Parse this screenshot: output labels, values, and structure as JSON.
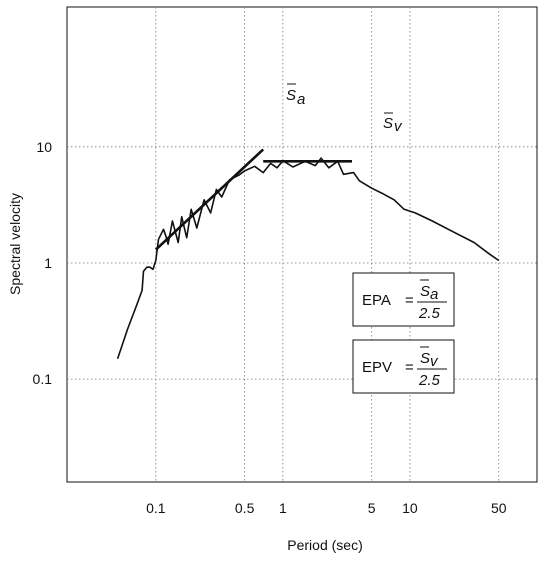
{
  "chart_data": {
    "type": "line",
    "title": "",
    "xlabel": "Period (sec)",
    "ylabel": "Spectral velocity",
    "xscale": "log",
    "yscale": "log",
    "xlim": [
      0.02,
      100
    ],
    "ylim": [
      0.013,
      160
    ],
    "grid": "dotted, at 0.1, 0.5, 1, 5, 10, 50 (x) and 0.1, 1, 10 (y)",
    "x_ticks": [
      {
        "value": 0.1,
        "label": "0.1"
      },
      {
        "value": 0.5,
        "label": "0.5"
      },
      {
        "value": 1,
        "label": "1"
      },
      {
        "value": 5,
        "label": "5"
      },
      {
        "value": 10,
        "label": "10"
      },
      {
        "value": 50,
        "label": "50"
      }
    ],
    "y_ticks": [
      {
        "value": 0.1,
        "label": "0.1"
      },
      {
        "value": 1,
        "label": "1"
      },
      {
        "value": 10,
        "label": "10"
      }
    ],
    "series": [
      {
        "role": "response spectrum",
        "points": [
          [
            0.05,
            0.15
          ],
          [
            0.06,
            0.27
          ],
          [
            0.07,
            0.42
          ],
          [
            0.078,
            0.58
          ],
          [
            0.08,
            0.85
          ],
          [
            0.085,
            0.92
          ],
          [
            0.09,
            0.92
          ],
          [
            0.095,
            0.88
          ],
          [
            0.1,
            1.05
          ],
          [
            0.105,
            1.6
          ],
          [
            0.115,
            1.95
          ],
          [
            0.12,
            1.7
          ],
          [
            0.125,
            1.45
          ],
          [
            0.135,
            2.3
          ],
          [
            0.15,
            1.5
          ],
          [
            0.16,
            2.5
          ],
          [
            0.175,
            1.65
          ],
          [
            0.19,
            2.9
          ],
          [
            0.21,
            2.0
          ],
          [
            0.24,
            3.5
          ],
          [
            0.27,
            2.7
          ],
          [
            0.3,
            4.3
          ],
          [
            0.33,
            3.7
          ],
          [
            0.38,
            5.2
          ],
          [
            0.45,
            5.7
          ],
          [
            0.5,
            6.2
          ],
          [
            0.6,
            6.8
          ],
          [
            0.7,
            6.0
          ],
          [
            0.8,
            7.2
          ],
          [
            0.9,
            6.6
          ],
          [
            1.0,
            7.6
          ],
          [
            1.2,
            6.7
          ],
          [
            1.5,
            7.5
          ],
          [
            1.8,
            6.9
          ],
          [
            2.0,
            8.0
          ],
          [
            2.3,
            6.6
          ],
          [
            2.7,
            7.5
          ],
          [
            3.0,
            5.8
          ],
          [
            3.6,
            6.0
          ],
          [
            4.0,
            5.1
          ],
          [
            5.0,
            4.4
          ],
          [
            6.0,
            4.0
          ],
          [
            7.5,
            3.5
          ],
          [
            9.0,
            2.9
          ],
          [
            11.0,
            2.7
          ],
          [
            15.0,
            2.3
          ],
          [
            22.0,
            1.85
          ],
          [
            32.0,
            1.5
          ],
          [
            42.0,
            1.2
          ],
          [
            50.0,
            1.05
          ]
        ]
      },
      {
        "role": "average spectral acceleration line",
        "label_main": "S",
        "label_sub": "a",
        "points": [
          [
            0.1,
            1.3
          ],
          [
            0.7,
            9.5
          ]
        ]
      },
      {
        "role": "average spectral velocity line",
        "label_main": "S",
        "label_sub": "v",
        "points": [
          [
            0.7,
            7.5
          ],
          [
            3.5,
            7.5
          ]
        ]
      }
    ],
    "annotations": [
      {
        "left": "EPA",
        "eq": "=",
        "num_main": "S",
        "num_sub": "a",
        "den": "2.5"
      },
      {
        "left": "EPV",
        "eq": "=",
        "num_main": "S",
        "num_sub": "v",
        "den": "2.5"
      }
    ]
  }
}
